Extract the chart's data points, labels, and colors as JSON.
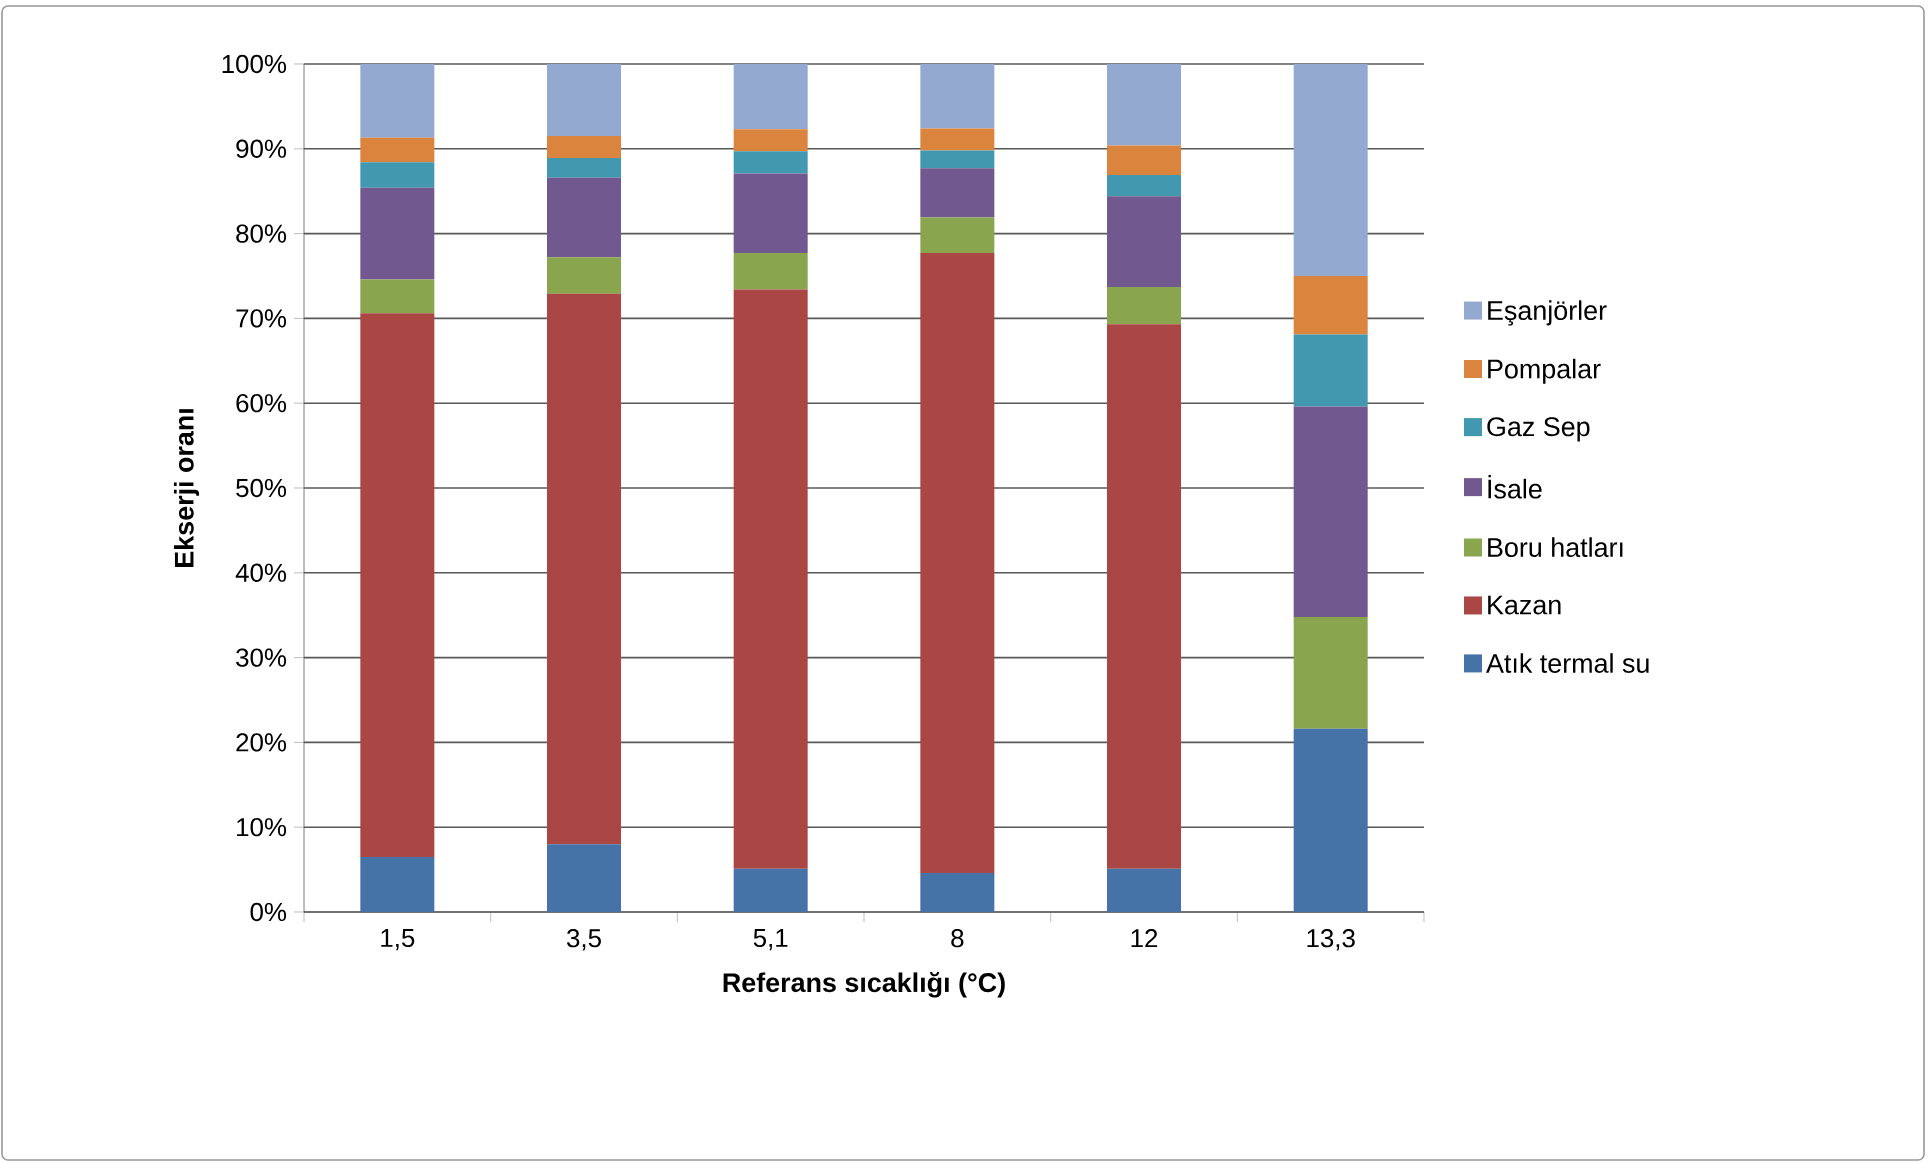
{
  "chart_data": {
    "type": "bar",
    "stacked": true,
    "categories": [
      "1,5",
      "3,5",
      "5,1",
      "8",
      "12",
      "13,3"
    ],
    "series": [
      {
        "name": "Atık termal su",
        "color": "#4572a7",
        "values": [
          6.5,
          8.0,
          5.1,
          4.6,
          5.1,
          21.6
        ]
      },
      {
        "name": "Kazan",
        "color": "#aa4643",
        "values": [
          64.1,
          64.9,
          68.3,
          73.1,
          64.2,
          0
        ]
      },
      {
        "name": "Boru hatları",
        "color": "#89a54e",
        "values": [
          4.0,
          4.3,
          4.3,
          4.2,
          4.4,
          13.2
        ]
      },
      {
        "name": "İsale",
        "color": "#71588f",
        "values": [
          10.8,
          9.4,
          9.4,
          5.8,
          10.7,
          24.8
        ]
      },
      {
        "name": "Gaz Sep",
        "color": "#4198af",
        "values": [
          3.0,
          2.3,
          2.6,
          2.1,
          2.5,
          8.5
        ]
      },
      {
        "name": "Pompalar",
        "color": "#db843d",
        "values": [
          2.9,
          2.6,
          2.6,
          2.6,
          3.5,
          6.9
        ]
      },
      {
        "name": "Eşanjörler",
        "color": "#93a9cf",
        "values": [
          8.7,
          8.5,
          7.7,
          7.6,
          9.6,
          25.0
        ]
      }
    ],
    "xlabel": "Referans sıcaklığı (°C)",
    "ylabel": "Ekserji oranı",
    "ylim": [
      0,
      100
    ],
    "yticks": [
      {
        "value": 0,
        "label": "0%"
      },
      {
        "value": 10,
        "label": "10%"
      },
      {
        "value": 20,
        "label": "20%"
      },
      {
        "value": 30,
        "label": "30%"
      },
      {
        "value": 40,
        "label": "40%"
      },
      {
        "value": 50,
        "label": "50%"
      },
      {
        "value": 60,
        "label": "60%"
      },
      {
        "value": 70,
        "label": "70%"
      },
      {
        "value": 80,
        "label": "80%"
      },
      {
        "value": 90,
        "label": "90%"
      },
      {
        "value": 100,
        "label": "100%"
      }
    ],
    "grid": "y",
    "legend": "right"
  }
}
